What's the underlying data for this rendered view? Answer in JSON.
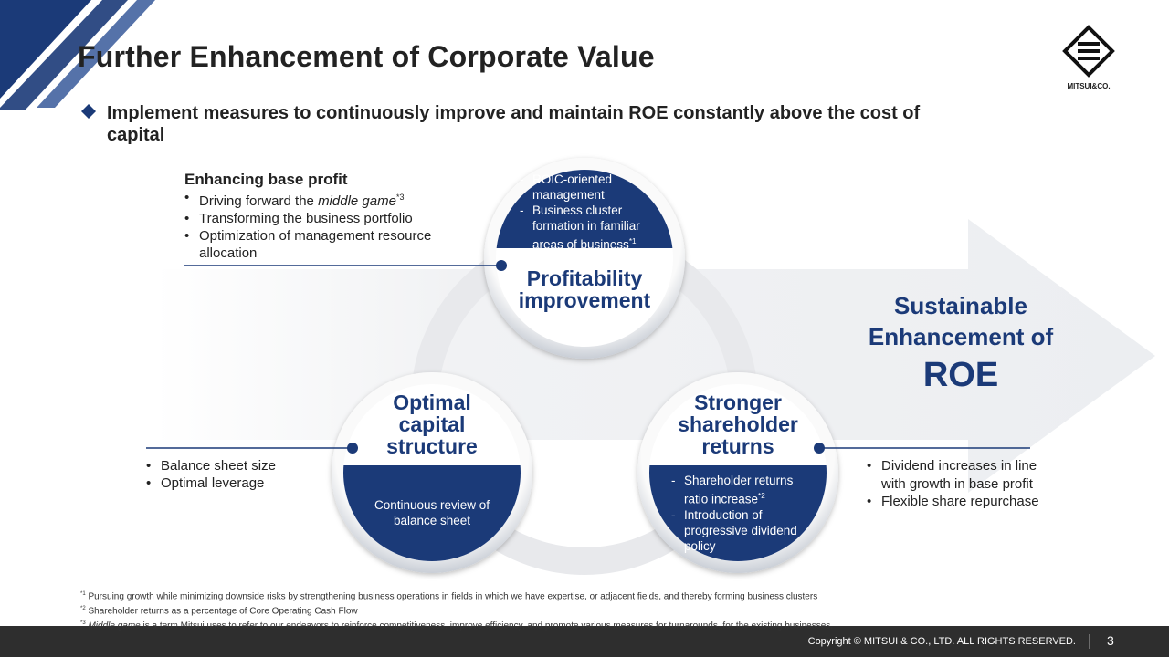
{
  "header": {
    "title": "Further Enhancement of Corporate Value",
    "logo": "MITSUI&CO."
  },
  "lead": "Implement measures to continuously improve and maintain ROE constantly above the cost of capital",
  "base_profit": {
    "title": "Enhancing base profit",
    "items": [
      [
        "Driving forward the",
        "middle game",
        "*3"
      ],
      [
        "Transforming the business portfolio"
      ],
      [
        "Optimization of management resource allocation"
      ]
    ]
  },
  "circles": [
    {
      "title": [
        "Profitability",
        "improvement"
      ],
      "items": [
        [
          "ROIC-oriented management"
        ],
        [
          "Business cluster formation in familiar areas of business",
          "*1"
        ]
      ]
    },
    {
      "title": [
        "Optimal",
        "capital",
        "structure"
      ],
      "text": "Continuous review of balance sheet"
    },
    {
      "title": [
        "Stronger",
        "shareholder",
        "returns"
      ],
      "items": [
        [
          "Shareholder returns ratio increase",
          "*2"
        ],
        [
          "Introduction of progressive dividend policy"
        ]
      ]
    }
  ],
  "capital_points": [
    "Balance sheet size",
    "Optimal leverage"
  ],
  "return_points": [
    "Dividend increases in line with growth in base profit",
    "Flexible share repurchase"
  ],
  "goal": [
    "Sustainable",
    "Enhancement of",
    "ROE"
  ],
  "footnotes": [
    {
      "mark": "*1",
      "text": [
        "Pursuing growth while minimizing downside risks by strengthening business operations in fields in which we have expertise, or adjacent fields, and thereby forming business clusters"
      ]
    },
    {
      "mark": "*2",
      "text": [
        "Shareholder returns as a percentage of Core Operating Cash Flow"
      ]
    },
    {
      "mark": "*3",
      "text": [
        "Middle game",
        "is a term Mitsui uses to refer to our endeavors to reinforce competitiveness, improve efficiency, and promote various measures for turnarounds, for the existing businesses."
      ]
    }
  ],
  "footer": {
    "copyright": "Copyright © MITSUI & CO., LTD. ALL RIGHTS RESERVED.",
    "page": "3"
  }
}
